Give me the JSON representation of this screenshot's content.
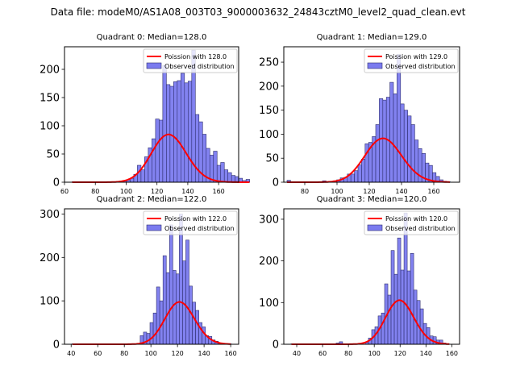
{
  "suptitle": "Data file: modeM0/AS1A08_003T03_9000003632_24843cztM0_level2_quad_clean.evt",
  "colors": {
    "bar": "#7b7bef",
    "bar_edge": "#2e2e6e",
    "poisson": "#ff0000"
  },
  "chart_data": [
    {
      "type": "bar",
      "title": "Quadrant 0: Median=128.0",
      "legend": [
        "Poission with 128.0",
        "Observed distribution"
      ],
      "legend_position": "top-right",
      "mean": 128.0,
      "total_scale": 2400,
      "xlim": [
        60,
        173
      ],
      "ylim": [
        0,
        240
      ],
      "xticks": [
        60,
        80,
        100,
        120,
        140,
        160
      ],
      "yticks": [
        0,
        50,
        100,
        150,
        200
      ],
      "bin_start": 65,
      "bin_width": 2.35,
      "values": [
        1,
        0,
        0,
        0,
        0,
        0,
        0,
        0,
        0,
        0,
        0,
        0,
        0,
        1,
        2,
        4,
        7,
        14,
        30,
        22,
        45,
        61,
        77,
        112,
        110,
        207,
        173,
        170,
        178,
        180,
        193,
        176,
        179,
        234,
        120,
        107,
        85,
        60,
        48,
        55,
        30,
        35,
        22,
        17,
        12,
        10,
        7,
        3,
        5
      ],
      "show_all_nonzero": true
    },
    {
      "type": "bar",
      "title": "Quadrant 1: Median=129.0",
      "legend": [
        "Poission with 129.0",
        "Observed distribution"
      ],
      "legend_position": "top-right",
      "mean": 129.0,
      "total_scale": 2600,
      "xlim": [
        67,
        176
      ],
      "ylim": [
        0,
        282
      ],
      "xticks": [
        80,
        100,
        120,
        140,
        160
      ],
      "yticks": [
        0,
        50,
        100,
        150,
        200,
        250
      ],
      "bin_start": 69,
      "bin_width": 2.2,
      "values": [
        4,
        0,
        0,
        0,
        0,
        0,
        0,
        0,
        0,
        0,
        3,
        0,
        2,
        3,
        5,
        9,
        10,
        17,
        17,
        24,
        36,
        48,
        80,
        83,
        95,
        120,
        174,
        171,
        177,
        208,
        184,
        266,
        163,
        150,
        138,
        120,
        88,
        70,
        60,
        40,
        35,
        20,
        12,
        5,
        2,
        1
      ],
      "show_all_nonzero": true
    },
    {
      "type": "bar",
      "title": "Quadrant 2: Median=122.0",
      "legend": [
        "Poission with 122.0",
        "Observed distribution"
      ],
      "legend_position": "top-right",
      "mean": 122.0,
      "total_scale": 2700,
      "xlim": [
        35,
        166
      ],
      "ylim": [
        0,
        312
      ],
      "xticks": [
        40,
        60,
        80,
        100,
        120,
        140,
        160
      ],
      "yticks": [
        0,
        100,
        200,
        300
      ],
      "bin_start": 40.5,
      "bin_width": 2.45,
      "values": [
        1,
        0,
        0,
        0,
        0,
        0,
        0,
        0,
        0,
        0,
        0,
        0,
        0,
        0,
        0,
        0,
        0,
        0,
        0,
        0,
        0,
        20,
        28,
        25,
        50,
        72,
        132,
        100,
        204,
        165,
        275,
        170,
        162,
        300,
        192,
        240,
        134,
        97,
        78,
        50,
        40,
        20,
        18,
        10,
        7,
        3,
        1,
        1,
        1
      ],
      "show_all_nonzero": true
    },
    {
      "type": "bar",
      "title": "Quadrant 3: Median=120.0",
      "legend": [
        "Poission with 120.0",
        "Observed distribution"
      ],
      "legend_position": "top-right",
      "mean": 120.0,
      "total_scale": 2900,
      "xlim": [
        30,
        166
      ],
      "ylim": [
        0,
        325
      ],
      "xticks": [
        40,
        60,
        80,
        100,
        120,
        140,
        160
      ],
      "yticks": [
        0,
        100,
        200,
        300
      ],
      "bin_start": 35.5,
      "bin_width": 2.5,
      "values": [
        1,
        0,
        0,
        0,
        0,
        0,
        0,
        0,
        0,
        0,
        0,
        0,
        0,
        0,
        3,
        6,
        0,
        0,
        0,
        0,
        0,
        0,
        0,
        5,
        15,
        35,
        42,
        68,
        75,
        145,
        118,
        225,
        168,
        255,
        178,
        315,
        176,
        218,
        130,
        105,
        85,
        50,
        40,
        20,
        18,
        10,
        10,
        3,
        1
      ],
      "show_all_nonzero": true
    }
  ]
}
